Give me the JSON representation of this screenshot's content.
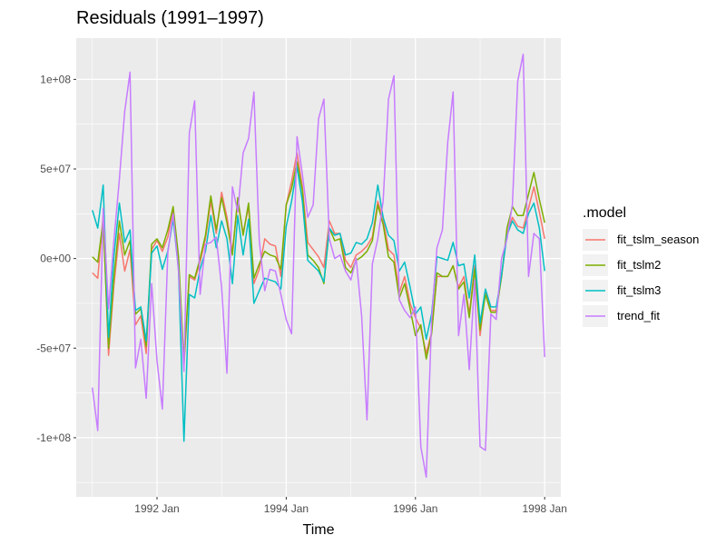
{
  "chart_data": {
    "type": "line",
    "title": "Residuals (1991–1997)",
    "xlabel": "Time",
    "ylabel": "",
    "ylim": [
      -133000000,
      123000000
    ],
    "xlim": [
      "1990-10",
      "1998-04"
    ],
    "grid": true,
    "legend": {
      "title": ".model",
      "placement": "right"
    },
    "x_ticks": [
      {
        "date": "1992-01",
        "label": "1992 Jan"
      },
      {
        "date": "1994-01",
        "label": "1994 Jan"
      },
      {
        "date": "1996-01",
        "label": "1996 Jan"
      },
      {
        "date": "1998-01",
        "label": "1998 Jan"
      }
    ],
    "y_ticks": [
      {
        "value": 100000000,
        "label": "1e+08"
      },
      {
        "value": 50000000,
        "label": "5e+07"
      },
      {
        "value": 0,
        "label": "0e+00"
      },
      {
        "value": -50000000,
        "label": "-5e+07"
      },
      {
        "value": -100000000,
        "label": "-1e+08"
      }
    ],
    "x": [
      "1991-01",
      "1991-02",
      "1991-03",
      "1991-04",
      "1991-05",
      "1991-06",
      "1991-07",
      "1991-08",
      "1991-09",
      "1991-10",
      "1991-11",
      "1991-12",
      "1992-01",
      "1992-02",
      "1992-03",
      "1992-04",
      "1992-05",
      "1992-06",
      "1992-07",
      "1992-08",
      "1992-09",
      "1992-10",
      "1992-11",
      "1992-12",
      "1993-01",
      "1993-02",
      "1993-03",
      "1993-04",
      "1993-05",
      "1993-06",
      "1993-07",
      "1993-08",
      "1993-09",
      "1993-10",
      "1993-11",
      "1993-12",
      "1994-01",
      "1994-02",
      "1994-03",
      "1994-04",
      "1994-05",
      "1994-06",
      "1994-07",
      "1994-08",
      "1994-09",
      "1994-10",
      "1994-11",
      "1994-12",
      "1995-01",
      "1995-02",
      "1995-03",
      "1995-04",
      "1995-05",
      "1995-06",
      "1995-07",
      "1995-08",
      "1995-09",
      "1995-10",
      "1995-11",
      "1995-12",
      "1996-01",
      "1996-02",
      "1996-03",
      "1996-04",
      "1996-05",
      "1996-06",
      "1996-07",
      "1996-08",
      "1996-09",
      "1996-10",
      "1996-11",
      "1996-12",
      "1997-01",
      "1997-02",
      "1997-03",
      "1997-04",
      "1997-05",
      "1997-06",
      "1997-07",
      "1997-08",
      "1997-09",
      "1997-10",
      "1997-11",
      "1997-12",
      "1998-01"
    ],
    "series": [
      {
        "name": "fit_tslm_season",
        "color": "#F8766D",
        "values": [
          -8,
          -11,
          24,
          -54,
          -15,
          14,
          -7,
          5,
          -37,
          -32,
          -53,
          5,
          10,
          4,
          12,
          28,
          -2,
          -60,
          -10,
          -12,
          -2,
          11,
          32,
          14,
          37,
          23,
          4,
          32,
          14,
          29,
          -14,
          -6,
          11,
          8,
          7,
          -10,
          30,
          43,
          59,
          40,
          9,
          5,
          1,
          -5,
          21,
          14,
          14,
          -1,
          -5,
          2,
          4,
          7,
          12,
          32,
          22,
          5,
          2,
          -19,
          -10,
          -25,
          -33,
          -39,
          -53,
          -41,
          -10,
          -10,
          -10,
          -4,
          -16,
          -10,
          -31,
          -4,
          -43,
          -18,
          -29,
          -29,
          -10,
          14,
          23,
          18,
          17,
          28,
          40,
          26,
          11
        ]
      },
      {
        "name": "fit_tslm2",
        "color": "#7CAE00",
        "values": [
          1,
          -2,
          21,
          -50,
          -11,
          21,
          2,
          10,
          -31,
          -28,
          -49,
          8,
          11,
          6,
          16,
          29,
          1,
          -58,
          -9,
          -11,
          0,
          13,
          35,
          16,
          34,
          20,
          2,
          34,
          13,
          31,
          -11,
          -3,
          4,
          2,
          1,
          -6,
          30,
          39,
          54,
          38,
          2,
          -1,
          -5,
          -14,
          17,
          10,
          11,
          -5,
          -8,
          -1,
          1,
          4,
          10,
          30,
          19,
          1,
          -2,
          -22,
          -14,
          -28,
          -43,
          -37,
          -56,
          -42,
          -8,
          -10,
          -10,
          -4,
          -17,
          -13,
          -33,
          -6,
          -40,
          -20,
          -30,
          -30,
          -10,
          17,
          29,
          24,
          24,
          36,
          48,
          33,
          20
        ]
      },
      {
        "name": "fit_tslm3",
        "color": "#00BFC4",
        "values": [
          27,
          17,
          41,
          -44,
          1,
          31,
          9,
          16,
          -29,
          -27,
          -46,
          3,
          7,
          -6,
          4,
          22,
          -6,
          -102,
          -20,
          -22,
          -6,
          4,
          24,
          6,
          21,
          11,
          -14,
          24,
          2,
          22,
          -25,
          -18,
          -11,
          -12,
          -13,
          -17,
          18,
          32,
          51,
          32,
          -1,
          -4,
          -7,
          -13,
          17,
          13,
          14,
          2,
          3,
          9,
          8,
          11,
          20,
          41,
          23,
          13,
          10,
          -7,
          -2,
          -16,
          -31,
          -27,
          -45,
          -31,
          1,
          0,
          -1,
          9,
          -4,
          -3,
          -22,
          2,
          -36,
          -17,
          -27,
          -27,
          -9,
          13,
          21,
          16,
          14,
          25,
          31,
          17,
          -7
        ]
      },
      {
        "name": "trend_fit",
        "color": "#C77CFF",
        "values": [
          -72,
          -96,
          28,
          -28,
          10,
          44,
          82,
          104,
          -61,
          -45,
          -78,
          -14,
          -57,
          -84,
          3,
          25,
          -7,
          -63,
          70,
          88,
          -20,
          8,
          9,
          12,
          -16,
          -64,
          40,
          26,
          59,
          67,
          93,
          10,
          -18,
          -6,
          -7,
          -20,
          -34,
          -42,
          68,
          47,
          23,
          30,
          78,
          89,
          11,
          0,
          2,
          -7,
          -12,
          0,
          -32,
          -90,
          -3,
          11,
          32,
          89,
          102,
          -23,
          -29,
          -33,
          -27,
          -105,
          -122,
          -34,
          6,
          16,
          65,
          93,
          -43,
          -20,
          -62,
          -12,
          -105,
          -107,
          -31,
          -34,
          0,
          11,
          30,
          99,
          114,
          -10,
          14,
          11,
          -55
        ]
      }
    ]
  }
}
